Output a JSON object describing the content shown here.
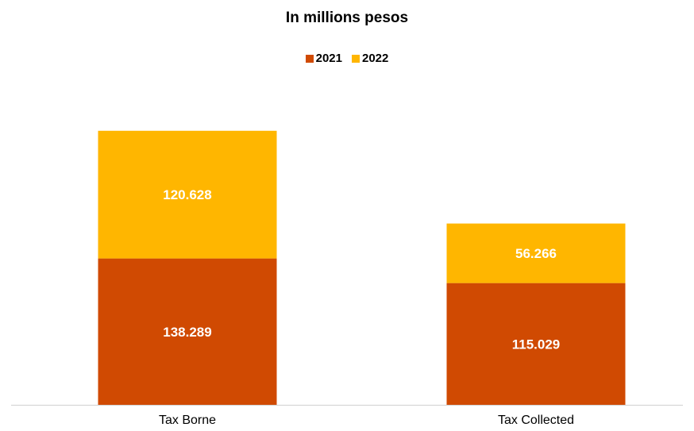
{
  "chart_data": {
    "type": "bar",
    "stacked": true,
    "title": "In millions pesos",
    "xlabel": "",
    "ylabel": "",
    "categories": [
      "Tax Borne",
      "Tax Collected"
    ],
    "series": [
      {
        "name": "2021",
        "values": [
          138.289,
          115.029
        ],
        "labels": [
          "138.289",
          "115.029"
        ],
        "color": "#D04A02"
      },
      {
        "name": "2022",
        "values": [
          120.628,
          56.266
        ],
        "labels": [
          "120.628",
          "56.266"
        ],
        "color": "#FFB600"
      }
    ],
    "ylim": [
      0,
      300
    ],
    "grid": false,
    "legend": "top-center"
  }
}
